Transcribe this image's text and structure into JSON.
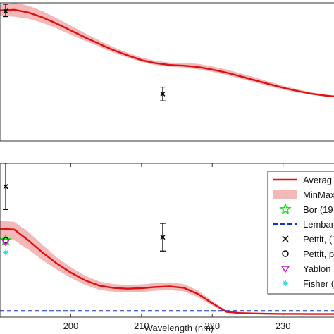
{
  "chart_data": [
    {
      "type": "line",
      "title": "",
      "xlabel": "",
      "ylabel": "",
      "xlim": [
        190,
        238
      ],
      "ylim": [
        0,
        1
      ],
      "grid": false,
      "series": [
        {
          "kind": "line",
          "color": "#dd1111",
          "x": [
            190,
            192,
            194,
            196,
            198,
            200,
            202,
            204,
            206,
            208,
            210,
            212,
            214,
            216,
            218,
            220,
            222,
            224,
            226,
            228,
            230,
            232,
            234,
            236,
            238
          ],
          "y": [
            0.945,
            0.95,
            0.93,
            0.895,
            0.85,
            0.8,
            0.75,
            0.703,
            0.658,
            0.62,
            0.585,
            0.563,
            0.55,
            0.545,
            0.535,
            0.517,
            0.495,
            0.468,
            0.44,
            0.412,
            0.385,
            0.362,
            0.342,
            0.328,
            0.318
          ]
        },
        {
          "kind": "band",
          "color": "#f4b8b8",
          "x": [
            190,
            192,
            194,
            196,
            198,
            200,
            202,
            204,
            206,
            208,
            210,
            212,
            214,
            216,
            218,
            220,
            222,
            224,
            226,
            228,
            230,
            232,
            234,
            236,
            238
          ],
          "lower": [
            0.905,
            0.9,
            0.885,
            0.855,
            0.815,
            0.77,
            0.725,
            0.683,
            0.64,
            0.604,
            0.572,
            0.55,
            0.537,
            0.53,
            0.519,
            0.5,
            0.478,
            0.451,
            0.424,
            0.397,
            0.372,
            0.351,
            0.334,
            0.322,
            0.313
          ],
          "upper": [
            0.985,
            1.0,
            0.98,
            0.94,
            0.89,
            0.835,
            0.78,
            0.728,
            0.68,
            0.64,
            0.603,
            0.58,
            0.568,
            0.565,
            0.558,
            0.54,
            0.518,
            0.49,
            0.46,
            0.43,
            0.4,
            0.375,
            0.352,
            0.336,
            0.325
          ]
        },
        {
          "kind": "errorbar",
          "marker": "x",
          "color": "#000000",
          "x": [
            190.8,
            213
          ],
          "y": [
            0.94,
            0.34
          ],
          "lo": [
            0.9,
            0.29
          ],
          "hi": [
            0.99,
            0.39
          ]
        }
      ]
    },
    {
      "type": "line",
      "title": "",
      "xlabel": "Wavelength (nm)",
      "ylabel": "",
      "xlim": [
        190,
        238
      ],
      "ylim": [
        0,
        1
      ],
      "xticks": [
        200,
        210,
        220,
        230
      ],
      "grid": false,
      "legend": {
        "position": "right",
        "entries": [
          {
            "label": "Averag",
            "symbol": "line",
            "color": "#dd1111"
          },
          {
            "label": "MinMax",
            "symbol": "band",
            "color": "#f4b8b8"
          },
          {
            "label": "Bor (19",
            "symbol": "star",
            "color": "#22dd22"
          },
          {
            "label": "Lembar",
            "symbol": "dash",
            "color": "#1133cc"
          },
          {
            "label": "Pettit, (1",
            "symbol": "x",
            "color": "#000000"
          },
          {
            "label": "Pettit, p",
            "symbol": "o",
            "color": "#000000"
          },
          {
            "label": "Yablon",
            "symbol": "tri",
            "color": "#cc22cc"
          },
          {
            "label": "Fisher (",
            "symbol": "asterisk",
            "color": "#33dddd"
          }
        ]
      },
      "series": [
        {
          "kind": "line",
          "color": "#dd1111",
          "x": [
            190,
            192,
            194,
            196,
            198,
            200,
            202,
            204,
            206,
            208,
            210,
            212,
            214,
            216,
            218,
            220,
            222,
            224,
            226,
            228,
            230,
            232,
            234,
            236,
            238
          ],
          "y": [
            0.575,
            0.57,
            0.5,
            0.42,
            0.35,
            0.29,
            0.24,
            0.205,
            0.19,
            0.185,
            0.188,
            0.196,
            0.2,
            0.19,
            0.15,
            0.09,
            0.035,
            0.026,
            0.024,
            0.022,
            0.021,
            0.021,
            0.02,
            0.02,
            0.02
          ]
        },
        {
          "kind": "band",
          "color": "#f4b8b8",
          "x": [
            190,
            192,
            194,
            196,
            198,
            200,
            202,
            204,
            206,
            208,
            210,
            212,
            214,
            216,
            218,
            220,
            222,
            224,
            226,
            228,
            230,
            232,
            234,
            236,
            238
          ],
          "lower": [
            0.505,
            0.5,
            0.44,
            0.37,
            0.31,
            0.255,
            0.21,
            0.178,
            0.165,
            0.16,
            0.164,
            0.172,
            0.176,
            0.167,
            0.13,
            0.075,
            0.028,
            0.021,
            0.02,
            0.018,
            0.017,
            0.017,
            0.016,
            0.016,
            0.016
          ],
          "upper": [
            0.625,
            0.62,
            0.555,
            0.47,
            0.39,
            0.325,
            0.27,
            0.232,
            0.215,
            0.21,
            0.213,
            0.221,
            0.226,
            0.215,
            0.172,
            0.105,
            0.042,
            0.032,
            0.028,
            0.026,
            0.025,
            0.025,
            0.024,
            0.024,
            0.024
          ]
        },
        {
          "kind": "hline",
          "style": "dashed",
          "color": "#1133cc",
          "y": 0.04
        },
        {
          "kind": "errorbar",
          "marker": "x",
          "color": "#000000",
          "x": [
            190.8,
            213
          ],
          "y": [
            0.85,
            0.52
          ],
          "lo": [
            0.7,
            0.43
          ],
          "hi": [
            1.0,
            0.61
          ]
        },
        {
          "kind": "marker",
          "marker": "star",
          "color": "#22dd22",
          "x": [
            190.8
          ],
          "y": [
            0.5
          ]
        },
        {
          "kind": "marker",
          "marker": "o",
          "color": "#000000",
          "x": [
            190.8
          ],
          "y": [
            0.5
          ]
        },
        {
          "kind": "marker",
          "marker": "tri",
          "color": "#cc22cc",
          "x": [
            190.8
          ],
          "y": [
            0.49
          ]
        },
        {
          "kind": "marker",
          "marker": "asterisk",
          "color": "#33dddd",
          "x": [
            190.8
          ],
          "y": [
            0.42
          ]
        }
      ]
    }
  ]
}
